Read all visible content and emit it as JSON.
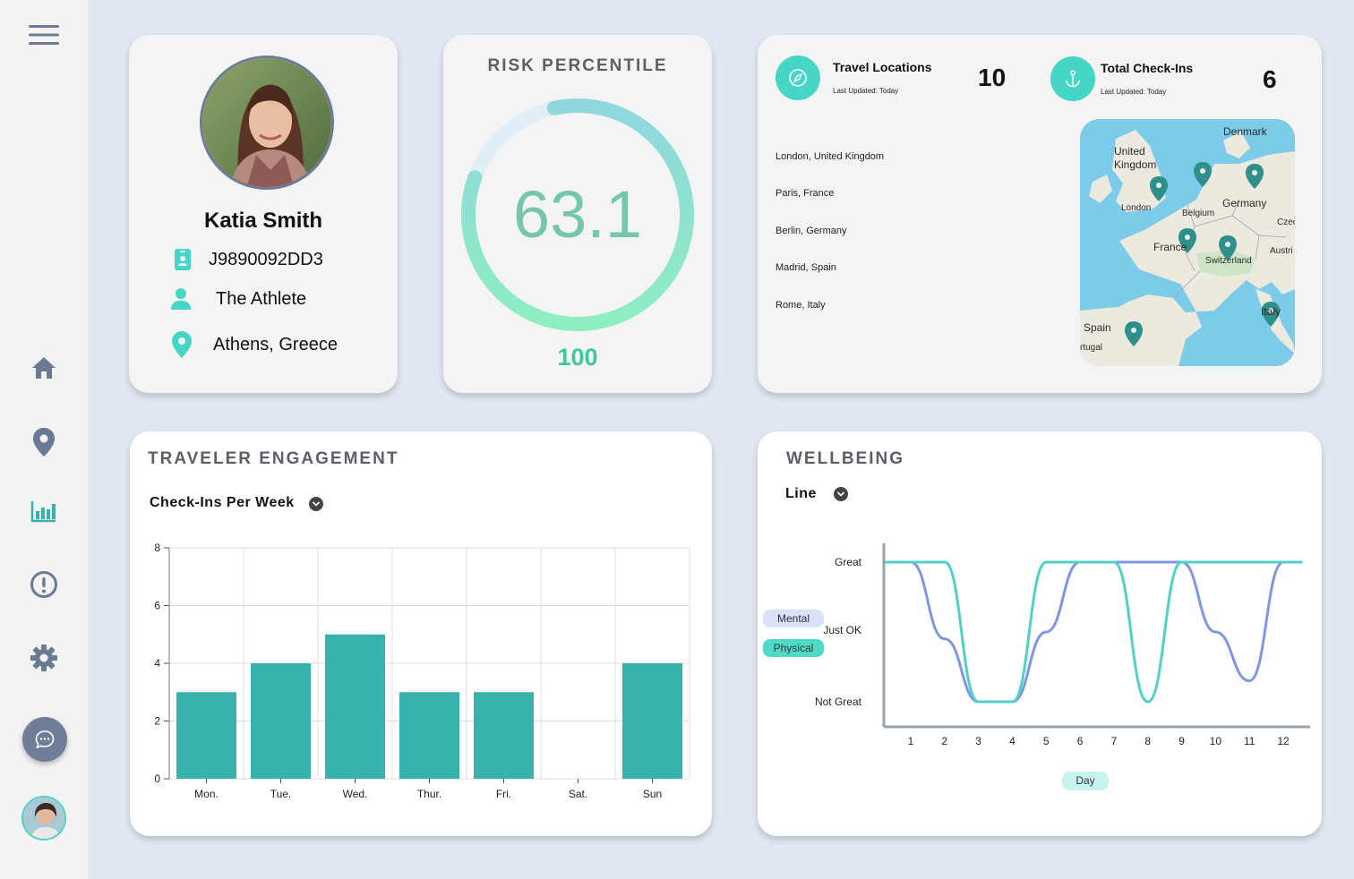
{
  "sidebar": {
    "items": [
      {
        "icon": "hamburger-menu-icon"
      },
      {
        "icon": "home-icon"
      },
      {
        "icon": "location-pin-icon"
      },
      {
        "icon": "bar-chart-icon"
      },
      {
        "icon": "alert-icon"
      },
      {
        "icon": "gear-icon"
      },
      {
        "icon": "chat-icon"
      }
    ]
  },
  "profile": {
    "name": "Katia Smith",
    "id": "J9890092DD3",
    "persona": "The Athlete",
    "location": "Athens, Greece"
  },
  "risk": {
    "title": "RISK PERCENTILE",
    "value": "63.1",
    "max": "100",
    "fraction": 0.631
  },
  "travel": {
    "locations_label": "Travel Locations",
    "locations_updated": "Last Updated: Today",
    "locations_count": "10",
    "checkins_label": "Total Check-Ins",
    "checkins_updated": "Last Updated: Today",
    "checkins_count": "6",
    "list": [
      "London, United Kingdom",
      "Paris, France",
      "Berlin, Germany",
      "Madrid, Spain",
      "Rome, Italy"
    ],
    "map_labels": [
      "Denmark",
      "United Kingdom",
      "London",
      "Belgium",
      "Germany",
      "France",
      "Switzerland",
      "Spain",
      "Italy",
      "Czec",
      "Austri",
      "rtugal"
    ]
  },
  "engagement": {
    "title": "TRAVELER ENGAGEMENT",
    "dropdown": "Check-Ins Per Week"
  },
  "wellbeing": {
    "title": "WELLBEING",
    "dropdown": "Line",
    "legend_mental": "Mental",
    "legend_physical": "Physical",
    "xlabel": "Day"
  },
  "colors": {
    "teal": "#38b2ac",
    "mint": "#46d6c5",
    "mental": "#7f96e6",
    "physical": "#4fd1c5"
  },
  "chart_data": [
    {
      "type": "bar",
      "categories": [
        "Mon.",
        "Tue.",
        "Wed.",
        "Thur.",
        "Fri.",
        "Sat.",
        "Sun"
      ],
      "values": [
        3,
        4,
        5,
        3,
        3,
        0,
        4
      ],
      "yticks": [
        0,
        2,
        4,
        6,
        8
      ],
      "ylim": [
        0,
        8
      ],
      "grid": true
    },
    {
      "type": "line",
      "x": [
        1,
        2,
        3,
        4,
        5,
        6,
        7,
        8,
        9,
        10,
        11,
        12
      ],
      "ytick_labels": [
        "Not Great",
        "Just OK",
        "Great"
      ],
      "ylim": [
        0,
        2
      ],
      "series": [
        {
          "name": "Mental",
          "values": [
            2,
            0.9,
            0,
            0,
            1,
            2,
            2,
            2,
            2,
            1,
            0.3,
            2
          ]
        },
        {
          "name": "Physical",
          "values": [
            2,
            2,
            0,
            0,
            2,
            2,
            2,
            0,
            2,
            2,
            2,
            2
          ]
        }
      ]
    }
  ]
}
